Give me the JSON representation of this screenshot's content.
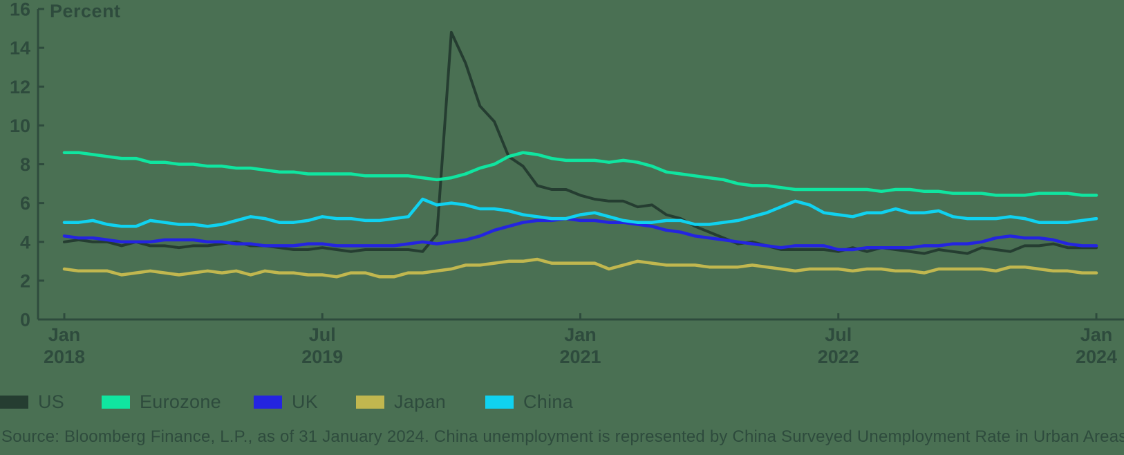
{
  "colors": {
    "background": "#4A7053",
    "text": "#2E4B3D",
    "axis": "#2E4B3D"
  },
  "footer": {
    "source": "Source: Bloomberg Finance, L.P., as of 31 January 2024. China unemployment is represented by China Surveyed Unemployment Rate in Urban Areas."
  },
  "chart_data": {
    "type": "line",
    "title": "",
    "ylabel": "Percent",
    "xlabel": "",
    "ylim": [
      0,
      16
    ],
    "ytick_step": 2,
    "grid": false,
    "legend_position": "bottom",
    "x_unit": "month",
    "categories": [
      "2018-01",
      "2018-02",
      "2018-03",
      "2018-04",
      "2018-05",
      "2018-06",
      "2018-07",
      "2018-08",
      "2018-09",
      "2018-10",
      "2018-11",
      "2018-12",
      "2019-01",
      "2019-02",
      "2019-03",
      "2019-04",
      "2019-05",
      "2019-06",
      "2019-07",
      "2019-08",
      "2019-09",
      "2019-10",
      "2019-11",
      "2019-12",
      "2020-01",
      "2020-02",
      "2020-03",
      "2020-04",
      "2020-05",
      "2020-06",
      "2020-07",
      "2020-08",
      "2020-09",
      "2020-10",
      "2020-11",
      "2020-12",
      "2021-01",
      "2021-02",
      "2021-03",
      "2021-04",
      "2021-05",
      "2021-06",
      "2021-07",
      "2021-08",
      "2021-09",
      "2021-10",
      "2021-11",
      "2021-12",
      "2022-01",
      "2022-02",
      "2022-03",
      "2022-04",
      "2022-05",
      "2022-06",
      "2022-07",
      "2022-08",
      "2022-09",
      "2022-10",
      "2022-11",
      "2022-12",
      "2023-01",
      "2023-02",
      "2023-03",
      "2023-04",
      "2023-05",
      "2023-06",
      "2023-07",
      "2023-08",
      "2023-09",
      "2023-10",
      "2023-11",
      "2023-12",
      "2024-01"
    ],
    "x_ticks": [
      {
        "label_top": "Jan",
        "label_bottom": "2018",
        "month_index": 0
      },
      {
        "label_top": "Jul",
        "label_bottom": "2019",
        "month_index": 18
      },
      {
        "label_top": "Jan",
        "label_bottom": "2021",
        "month_index": 36
      },
      {
        "label_top": "Jul",
        "label_bottom": "2022",
        "month_index": 54
      },
      {
        "label_top": "Jan",
        "label_bottom": "2024",
        "month_index": 72
      }
    ],
    "series": [
      {
        "name": "US",
        "color": "#253D31",
        "values": [
          4.0,
          4.1,
          4.0,
          4.0,
          3.8,
          4.0,
          3.8,
          3.8,
          3.7,
          3.8,
          3.8,
          3.9,
          4.0,
          3.8,
          3.8,
          3.7,
          3.6,
          3.6,
          3.7,
          3.6,
          3.5,
          3.6,
          3.6,
          3.6,
          3.6,
          3.5,
          4.4,
          14.8,
          13.2,
          11.0,
          10.2,
          8.4,
          7.9,
          6.9,
          6.7,
          6.7,
          6.4,
          6.2,
          6.1,
          6.1,
          5.8,
          5.9,
          5.4,
          5.2,
          4.8,
          4.5,
          4.2,
          3.9,
          4.0,
          3.8,
          3.6,
          3.6,
          3.6,
          3.6,
          3.5,
          3.7,
          3.5,
          3.7,
          3.6,
          3.5,
          3.4,
          3.6,
          3.5,
          3.4,
          3.7,
          3.6,
          3.5,
          3.8,
          3.8,
          3.9,
          3.7,
          3.7,
          3.7
        ]
      },
      {
        "name": "Eurozone",
        "color": "#10E5A0",
        "values": [
          8.6,
          8.6,
          8.5,
          8.4,
          8.3,
          8.3,
          8.1,
          8.1,
          8.0,
          8.0,
          7.9,
          7.9,
          7.8,
          7.8,
          7.7,
          7.6,
          7.6,
          7.5,
          7.5,
          7.5,
          7.5,
          7.4,
          7.4,
          7.4,
          7.4,
          7.3,
          7.2,
          7.3,
          7.5,
          7.8,
          8.0,
          8.4,
          8.6,
          8.5,
          8.3,
          8.2,
          8.2,
          8.2,
          8.1,
          8.2,
          8.1,
          7.9,
          7.6,
          7.5,
          7.4,
          7.3,
          7.2,
          7.0,
          6.9,
          6.9,
          6.8,
          6.7,
          6.7,
          6.7,
          6.7,
          6.7,
          6.7,
          6.6,
          6.7,
          6.7,
          6.6,
          6.6,
          6.5,
          6.5,
          6.5,
          6.4,
          6.4,
          6.4,
          6.5,
          6.5,
          6.5,
          6.4,
          6.4
        ]
      },
      {
        "name": "UK",
        "color": "#2424E0",
        "values": [
          4.3,
          4.2,
          4.2,
          4.1,
          4.0,
          4.0,
          4.0,
          4.1,
          4.1,
          4.1,
          4.0,
          4.0,
          3.9,
          3.9,
          3.8,
          3.8,
          3.8,
          3.9,
          3.9,
          3.8,
          3.8,
          3.8,
          3.8,
          3.8,
          3.9,
          4.0,
          3.9,
          4.0,
          4.1,
          4.3,
          4.6,
          4.8,
          5.0,
          5.1,
          5.1,
          5.2,
          5.1,
          5.1,
          5.0,
          5.0,
          4.9,
          4.8,
          4.6,
          4.5,
          4.3,
          4.2,
          4.1,
          4.0,
          3.9,
          3.8,
          3.7,
          3.8,
          3.8,
          3.8,
          3.6,
          3.6,
          3.7,
          3.7,
          3.7,
          3.7,
          3.8,
          3.8,
          3.9,
          3.9,
          4.0,
          4.2,
          4.3,
          4.2,
          4.2,
          4.1,
          3.9,
          3.8,
          3.8
        ]
      },
      {
        "name": "Japan",
        "color": "#C1B74F",
        "values": [
          2.6,
          2.5,
          2.5,
          2.5,
          2.3,
          2.4,
          2.5,
          2.4,
          2.3,
          2.4,
          2.5,
          2.4,
          2.5,
          2.3,
          2.5,
          2.4,
          2.4,
          2.3,
          2.3,
          2.2,
          2.4,
          2.4,
          2.2,
          2.2,
          2.4,
          2.4,
          2.5,
          2.6,
          2.8,
          2.8,
          2.9,
          3.0,
          3.0,
          3.1,
          2.9,
          2.9,
          2.9,
          2.9,
          2.6,
          2.8,
          3.0,
          2.9,
          2.8,
          2.8,
          2.8,
          2.7,
          2.7,
          2.7,
          2.8,
          2.7,
          2.6,
          2.5,
          2.6,
          2.6,
          2.6,
          2.5,
          2.6,
          2.6,
          2.5,
          2.5,
          2.4,
          2.6,
          2.6,
          2.6,
          2.6,
          2.5,
          2.7,
          2.7,
          2.6,
          2.5,
          2.5,
          2.4,
          2.4
        ]
      },
      {
        "name": "China",
        "color": "#10D2F0",
        "values": [
          5.0,
          5.0,
          5.1,
          4.9,
          4.8,
          4.8,
          5.1,
          5.0,
          4.9,
          4.9,
          4.8,
          4.9,
          5.1,
          5.3,
          5.2,
          5.0,
          5.0,
          5.1,
          5.3,
          5.2,
          5.2,
          5.1,
          5.1,
          5.2,
          5.3,
          6.2,
          5.9,
          6.0,
          5.9,
          5.7,
          5.7,
          5.6,
          5.4,
          5.3,
          5.2,
          5.2,
          5.4,
          5.5,
          5.3,
          5.1,
          5.0,
          5.0,
          5.1,
          5.1,
          4.9,
          4.9,
          5.0,
          5.1,
          5.3,
          5.5,
          5.8,
          6.1,
          5.9,
          5.5,
          5.4,
          5.3,
          5.5,
          5.5,
          5.7,
          5.5,
          5.5,
          5.6,
          5.3,
          5.2,
          5.2,
          5.2,
          5.3,
          5.2,
          5.0,
          5.0,
          5.0,
          5.1,
          5.2
        ]
      }
    ]
  }
}
